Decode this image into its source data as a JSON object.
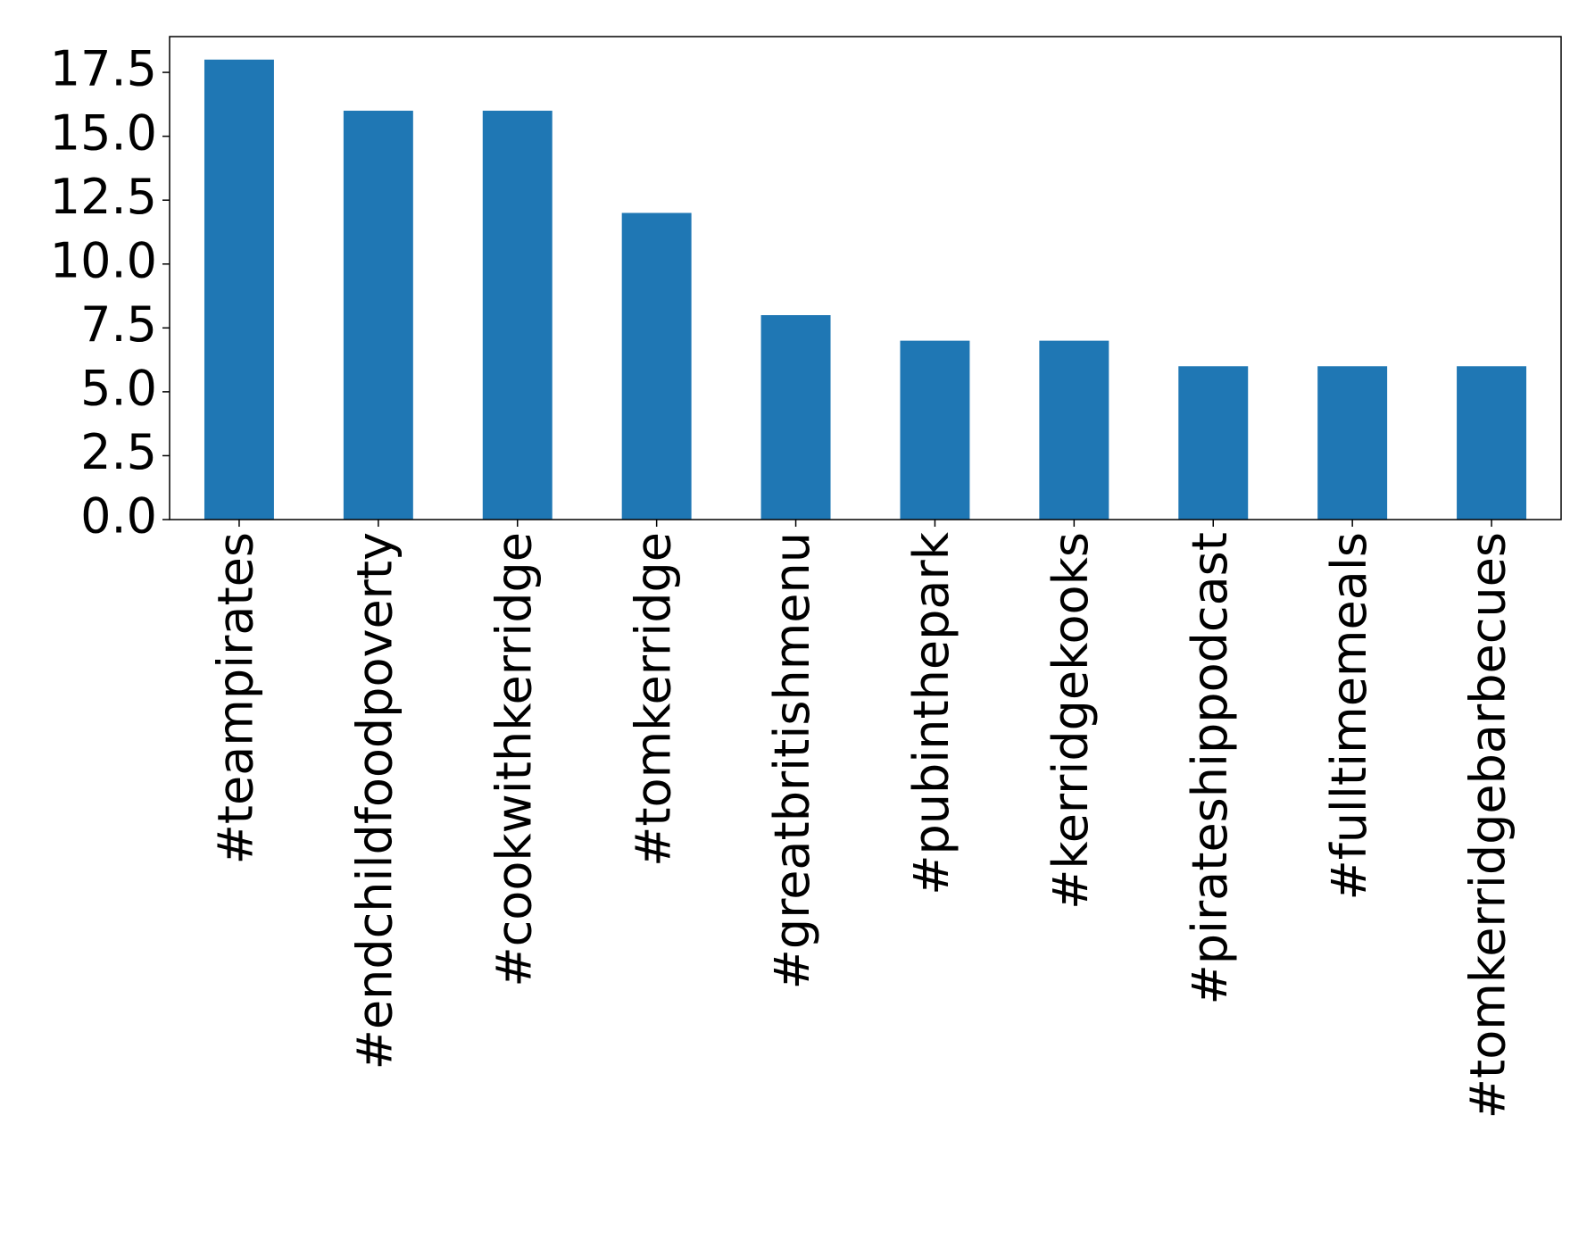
{
  "chart_data": {
    "type": "bar",
    "categories": [
      "#teampirates",
      "#endchildfoodpoverty",
      "#cookwithkerridge",
      "#tomkerridge",
      "#greatbritishmenu",
      "#pubinthepark",
      "#kerridgekooks",
      "#pirateshippodcast",
      "#fulltimemeals",
      "#tomkerridgebarbecues"
    ],
    "values": [
      18,
      16,
      16,
      12,
      8,
      7,
      7,
      6,
      6,
      6
    ],
    "color": "#1f77b4",
    "ylim": [
      0,
      18.9
    ],
    "yticks": [
      {
        "value": 0,
        "label": "0.0"
      },
      2.5,
      {
        "value": 5,
        "label": "5.0"
      },
      7.5,
      {
        "value": 10,
        "label": "10.0"
      },
      12.5,
      {
        "value": 15,
        "label": "15.0"
      },
      17.5
    ],
    "grid": false
  }
}
